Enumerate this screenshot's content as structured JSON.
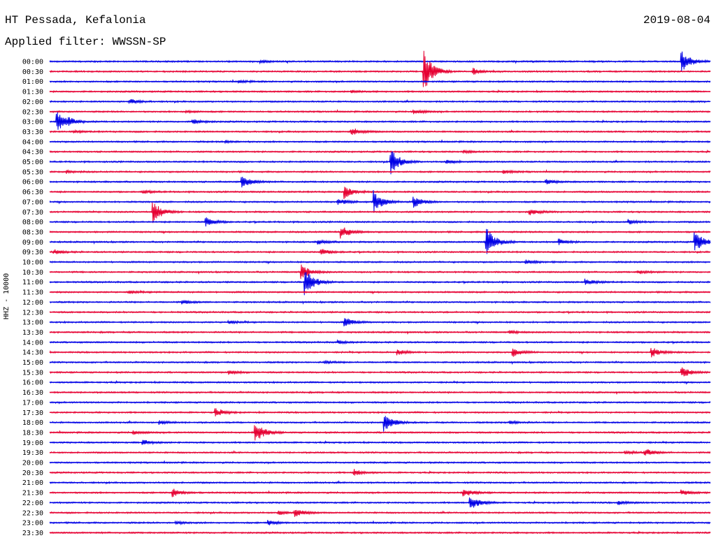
{
  "header": {
    "station": "HT Pessada, Kefalonia",
    "date": "2019-08-04",
    "filter": "Applied filter: WWSSN-SP"
  },
  "chart_data": {
    "type": "helicorder",
    "ylabel": "HHZ - 10000",
    "row_labels": [
      "00:00",
      "00:30",
      "01:00",
      "01:30",
      "02:00",
      "02:30",
      "03:00",
      "03:30",
      "04:00",
      "04:30",
      "05:00",
      "05:30",
      "06:00",
      "06:30",
      "07:00",
      "07:30",
      "08:00",
      "08:30",
      "09:00",
      "09:30",
      "10:00",
      "10:30",
      "11:00",
      "11:30",
      "12:00",
      "12:30",
      "13:00",
      "13:30",
      "14:00",
      "14:30",
      "15:00",
      "15:30",
      "16:00",
      "16:30",
      "17:00",
      "17:30",
      "18:00",
      "18:30",
      "19:00",
      "19:30",
      "20:00",
      "20:30",
      "21:00",
      "21:30",
      "22:00",
      "22:30",
      "23:00",
      "23:30"
    ],
    "colors": [
      "#0000e6",
      "#e60032"
    ],
    "events": [
      {
        "row": 0,
        "t": 0.318,
        "amp": 0.15
      },
      {
        "row": 0,
        "t": 0.955,
        "amp": 1.2
      },
      {
        "row": 1,
        "t": 0.565,
        "amp": 2.4
      },
      {
        "row": 1,
        "t": 0.64,
        "amp": 0.35
      },
      {
        "row": 2,
        "t": 0.285,
        "amp": 0.12
      },
      {
        "row": 3,
        "t": 0.455,
        "amp": 0.12
      },
      {
        "row": 4,
        "t": 0.12,
        "amp": 0.3
      },
      {
        "row": 5,
        "t": 0.55,
        "amp": 0.25
      },
      {
        "row": 5,
        "t": 0.205,
        "amp": 0.12
      },
      {
        "row": 6,
        "t": 0.01,
        "amp": 1.1
      },
      {
        "row": 6,
        "t": 0.215,
        "amp": 0.3
      },
      {
        "row": 6,
        "t": 0.027,
        "amp": 0.25
      },
      {
        "row": 7,
        "t": 0.455,
        "amp": 0.45
      },
      {
        "row": 7,
        "t": 0.035,
        "amp": 0.12
      },
      {
        "row": 8,
        "t": 0.265,
        "amp": 0.12
      },
      {
        "row": 9,
        "t": 0.625,
        "amp": 0.12
      },
      {
        "row": 10,
        "t": 0.515,
        "amp": 1.4
      },
      {
        "row": 10,
        "t": 0.6,
        "amp": 0.25
      },
      {
        "row": 11,
        "t": 0.685,
        "amp": 0.2
      },
      {
        "row": 11,
        "t": 0.025,
        "amp": 0.15
      },
      {
        "row": 12,
        "t": 0.29,
        "amp": 0.7
      },
      {
        "row": 12,
        "t": 0.75,
        "amp": 0.25
      },
      {
        "row": 13,
        "t": 0.445,
        "amp": 0.7
      },
      {
        "row": 13,
        "t": 0.14,
        "amp": 0.15
      },
      {
        "row": 14,
        "t": 0.49,
        "amp": 1.2
      },
      {
        "row": 14,
        "t": 0.435,
        "amp": 0.35
      },
      {
        "row": 14,
        "t": 0.55,
        "amp": 0.6
      },
      {
        "row": 15,
        "t": 0.155,
        "amp": 1.2
      },
      {
        "row": 15,
        "t": 0.725,
        "amp": 0.35
      },
      {
        "row": 16,
        "t": 0.235,
        "amp": 0.5
      },
      {
        "row": 16,
        "t": 0.875,
        "amp": 0.25
      },
      {
        "row": 17,
        "t": 0.44,
        "amp": 0.7
      },
      {
        "row": 18,
        "t": 0.66,
        "amp": 1.6
      },
      {
        "row": 18,
        "t": 0.975,
        "amp": 1.2
      },
      {
        "row": 18,
        "t": 0.405,
        "amp": 0.25
      },
      {
        "row": 18,
        "t": 0.77,
        "amp": 0.3
      },
      {
        "row": 19,
        "t": 0.41,
        "amp": 0.35
      },
      {
        "row": 19,
        "t": 0.005,
        "amp": 0.25
      },
      {
        "row": 20,
        "t": 0.72,
        "amp": 0.2
      },
      {
        "row": 21,
        "t": 0.38,
        "amp": 0.8
      },
      {
        "row": 21,
        "t": 0.89,
        "amp": 0.2
      },
      {
        "row": 22,
        "t": 0.385,
        "amp": 1.6
      },
      {
        "row": 22,
        "t": 0.81,
        "amp": 0.35
      },
      {
        "row": 23,
        "t": 0.12,
        "amp": 0.15
      },
      {
        "row": 24,
        "t": 0.2,
        "amp": 0.2
      },
      {
        "row": 26,
        "t": 0.445,
        "amp": 0.5
      },
      {
        "row": 26,
        "t": 0.27,
        "amp": 0.15
      },
      {
        "row": 27,
        "t": 0.695,
        "amp": 0.15
      },
      {
        "row": 28,
        "t": 0.435,
        "amp": 0.15
      },
      {
        "row": 29,
        "t": 0.7,
        "amp": 0.45
      },
      {
        "row": 29,
        "t": 0.91,
        "amp": 0.5
      },
      {
        "row": 29,
        "t": 0.525,
        "amp": 0.3
      },
      {
        "row": 30,
        "t": 0.415,
        "amp": 0.15
      },
      {
        "row": 31,
        "t": 0.955,
        "amp": 0.6
      },
      {
        "row": 31,
        "t": 0.27,
        "amp": 0.2
      },
      {
        "row": 35,
        "t": 0.25,
        "amp": 0.4
      },
      {
        "row": 36,
        "t": 0.505,
        "amp": 1.0
      },
      {
        "row": 36,
        "t": 0.165,
        "amp": 0.2
      },
      {
        "row": 36,
        "t": 0.695,
        "amp": 0.2
      },
      {
        "row": 37,
        "t": 0.31,
        "amp": 1.1
      },
      {
        "row": 37,
        "t": 0.125,
        "amp": 0.2
      },
      {
        "row": 38,
        "t": 0.14,
        "amp": 0.25
      },
      {
        "row": 39,
        "t": 0.9,
        "amp": 0.4
      },
      {
        "row": 39,
        "t": 0.87,
        "amp": 0.2
      },
      {
        "row": 41,
        "t": 0.46,
        "amp": 0.35
      },
      {
        "row": 43,
        "t": 0.185,
        "amp": 0.45
      },
      {
        "row": 43,
        "t": 0.625,
        "amp": 0.45
      },
      {
        "row": 43,
        "t": 0.955,
        "amp": 0.3
      },
      {
        "row": 44,
        "t": 0.635,
        "amp": 0.9
      },
      {
        "row": 44,
        "t": 0.86,
        "amp": 0.2
      },
      {
        "row": 45,
        "t": 0.37,
        "amp": 0.4
      },
      {
        "row": 45,
        "t": 0.345,
        "amp": 0.25
      },
      {
        "row": 46,
        "t": 0.33,
        "amp": 0.25
      },
      {
        "row": 46,
        "t": 0.19,
        "amp": 0.15
      }
    ]
  }
}
